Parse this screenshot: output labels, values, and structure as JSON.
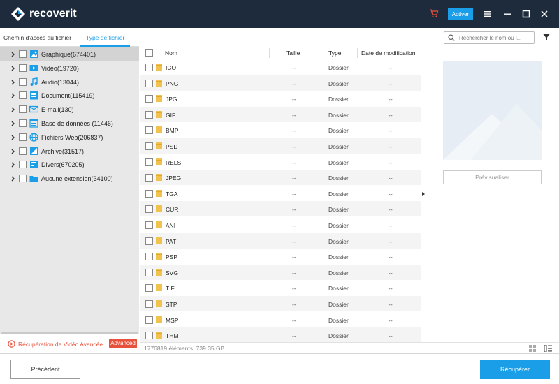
{
  "app": {
    "brand": "recover",
    "brand_suffix": "it",
    "activate_label": "Activer"
  },
  "tabs": [
    {
      "label": "Chemin d'accès au fichier"
    },
    {
      "label": "Type de fichier"
    }
  ],
  "search": {
    "placeholder": "Rechercher le nom ou l..."
  },
  "tree": [
    {
      "label": "Graphique(674401)",
      "icon": "image-icon",
      "selected": true
    },
    {
      "label": "Vidéo(19720)",
      "icon": "video-icon"
    },
    {
      "label": "Audio(13044)",
      "icon": "audio-icon"
    },
    {
      "label": "Document(115419)",
      "icon": "document-icon"
    },
    {
      "label": "E-mail(130)",
      "icon": "email-icon"
    },
    {
      "label": "Base de données (11446)",
      "icon": "database-icon"
    },
    {
      "label": "Fichiers Web(206837)",
      "icon": "globe-icon"
    },
    {
      "label": "Archive(31517)",
      "icon": "archive-icon"
    },
    {
      "label": "Divers(670205)",
      "icon": "misc-icon"
    },
    {
      "label": "Aucune extension(34100)",
      "icon": "folder-icon"
    }
  ],
  "advanced": {
    "label": "Récupération de Vidéo Avancée",
    "badge": "Advanced"
  },
  "table": {
    "columns": [
      "Nom",
      "Taille",
      "Type",
      "Date de modification"
    ],
    "rows": [
      {
        "name": "ICO",
        "size": "--",
        "type": "Dossier",
        "date": "--"
      },
      {
        "name": "PNG",
        "size": "--",
        "type": "Dossier",
        "date": "--"
      },
      {
        "name": "JPG",
        "size": "--",
        "type": "Dossier",
        "date": "--"
      },
      {
        "name": "GIF",
        "size": "--",
        "type": "Dossier",
        "date": "--"
      },
      {
        "name": "BMP",
        "size": "--",
        "type": "Dossier",
        "date": "--"
      },
      {
        "name": "PSD",
        "size": "--",
        "type": "Dossier",
        "date": "--"
      },
      {
        "name": "RELS",
        "size": "--",
        "type": "Dossier",
        "date": "--"
      },
      {
        "name": "JPEG",
        "size": "--",
        "type": "Dossier",
        "date": "--"
      },
      {
        "name": "TGA",
        "size": "--",
        "type": "Dossier",
        "date": "--"
      },
      {
        "name": "CUR",
        "size": "--",
        "type": "Dossier",
        "date": "--"
      },
      {
        "name": "ANI",
        "size": "--",
        "type": "Dossier",
        "date": "--"
      },
      {
        "name": "PAT",
        "size": "--",
        "type": "Dossier",
        "date": "--"
      },
      {
        "name": "PSP",
        "size": "--",
        "type": "Dossier",
        "date": "--"
      },
      {
        "name": "SVG",
        "size": "--",
        "type": "Dossier",
        "date": "--"
      },
      {
        "name": "TIF",
        "size": "--",
        "type": "Dossier",
        "date": "--"
      },
      {
        "name": "STP",
        "size": "--",
        "type": "Dossier",
        "date": "--"
      },
      {
        "name": "MSP",
        "size": "--",
        "type": "Dossier",
        "date": "--"
      },
      {
        "name": "THM",
        "size": "--",
        "type": "Dossier",
        "date": "--"
      }
    ]
  },
  "preview": {
    "button_label": "Prévisualiser"
  },
  "status": {
    "text": "1776819 éléments, 739.35  GB"
  },
  "footer": {
    "previous_label": "Précédent",
    "recover_label": "Récupérer"
  },
  "colors": {
    "titlebar": "#1e2b3c",
    "accent": "#1a9ee8",
    "advanced": "#e8513c",
    "folder": "#f2c24f"
  }
}
